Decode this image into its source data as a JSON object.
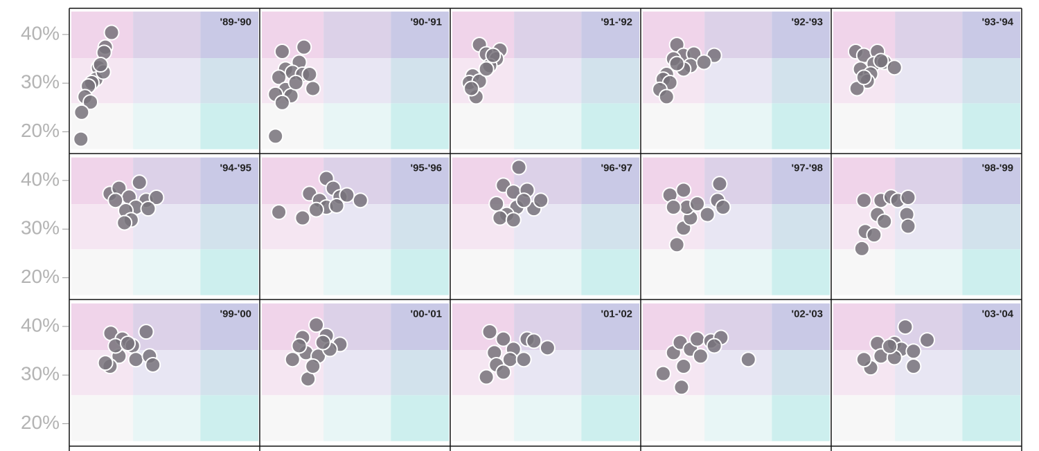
{
  "chart_data": [
    {
      "type": "scatter",
      "title": "'89-'90",
      "xlim": [
        0,
        100
      ],
      "ylim": [
        16,
        45
      ],
      "yticks": [
        {
          "value": 20,
          "label": "20%"
        },
        {
          "value": 30,
          "label": "30%"
        },
        {
          "value": 40,
          "label": "40%"
        }
      ],
      "x": [
        21.5,
        18.2,
        17.5,
        14.5,
        13.1,
        10.9,
        9.1,
        7.3,
        10.2,
        5.5,
        5.1,
        17.1,
        15.6
      ],
      "values": [
        40.4,
        37.4,
        36.3,
        33.2,
        30.8,
        30.1,
        29.4,
        27.2,
        26.1,
        24.0,
        18.5,
        32.3,
        33.8
      ]
    },
    {
      "type": "scatter",
      "title": "'90-'91",
      "xlim": [
        0,
        100
      ],
      "ylim": [
        16,
        45
      ],
      "x": [
        10.9,
        22.5,
        20,
        12.7,
        16.4,
        21.8,
        25.5,
        9.1,
        12.7,
        7.3,
        15.6,
        10.9,
        27.3,
        7.3,
        18.2
      ],
      "values": [
        36.5,
        37.4,
        34.3,
        32.9,
        32.2,
        31.8,
        31.8,
        31.2,
        28.7,
        27.7,
        27.4,
        26.0,
        28.9,
        19.1,
        30.1
      ]
    },
    {
      "type": "scatter",
      "title": "'91-'92",
      "xlim": [
        0,
        100
      ],
      "ylim": [
        16,
        45
      ],
      "x": [
        14.5,
        18.2,
        25.5,
        23.6,
        20,
        10.9,
        9.1,
        14.5,
        12.7,
        18.2,
        21.8,
        10.2
      ],
      "values": [
        37.9,
        36.0,
        36.8,
        35.0,
        33.6,
        31.5,
        30.1,
        30.4,
        27.2,
        32.9,
        35.7,
        28.9
      ]
    },
    {
      "type": "scatter",
      "title": "'92-'93",
      "xlim": [
        0,
        100
      ],
      "ylim": [
        16,
        45
      ],
      "x": [
        18.2,
        21.8,
        16.4,
        27.3,
        25.5,
        21.8,
        12.7,
        10.9,
        14.5,
        9.1,
        12.7,
        38.2,
        32.7,
        18.2
      ],
      "values": [
        37.9,
        35.7,
        35.0,
        36.0,
        33.6,
        32.9,
        31.8,
        30.8,
        30.1,
        28.7,
        27.2,
        35.7,
        34.3,
        34.0
      ]
    },
    {
      "type": "scatter",
      "title": "'93-'94",
      "xlim": [
        0,
        100
      ],
      "ylim": [
        16,
        45
      ],
      "x": [
        12,
        16.4,
        23.6,
        21.8,
        27.3,
        14.5,
        20,
        18.2,
        12.7,
        32.7,
        16.4,
        25.5
      ],
      "values": [
        36.5,
        35.7,
        36.5,
        34.0,
        34.3,
        32.9,
        31.9,
        30.4,
        28.9,
        33.2,
        31.2,
        34.6
      ]
    },
    {
      "type": "scatter",
      "title": "'94-'95",
      "xlim": [
        0,
        100
      ],
      "ylim": [
        16,
        45
      ],
      "yticks": [
        {
          "value": 20,
          "label": "20%"
        },
        {
          "value": 30,
          "label": "30%"
        },
        {
          "value": 40,
          "label": "40%"
        }
      ],
      "x": [
        20.7,
        25.5,
        30.9,
        36.4,
        40,
        45.5,
        34.5,
        29.1,
        32,
        41.1,
        23.6,
        28.4
      ],
      "values": [
        37.3,
        38.4,
        36.6,
        39.6,
        35.9,
        36.5,
        34.5,
        33.8,
        31.9,
        34.2,
        35.9,
        31.3
      ]
    },
    {
      "type": "scatter",
      "title": "'95-'96",
      "xlim": [
        0,
        100
      ],
      "ylim": [
        16,
        45
      ],
      "x": [
        25.5,
        34.5,
        30.9,
        38.2,
        41.8,
        34.5,
        29.1,
        21.8,
        9.1,
        52.7,
        45.5,
        40
      ],
      "values": [
        37.3,
        40.4,
        35.9,
        38.4,
        36.6,
        34.5,
        34.0,
        32.3,
        33.5,
        35.9,
        37,
        34.8
      ]
    },
    {
      "type": "scatter",
      "title": "'96-'97",
      "xlim": [
        0,
        100
      ],
      "ylim": [
        16,
        45
      ],
      "x": [
        35.6,
        27.3,
        32.7,
        40,
        23.6,
        34.5,
        29.1,
        25.5,
        32.7,
        43.6,
        47.3,
        38.2
      ],
      "values": [
        42.7,
        39.0,
        37.6,
        38.0,
        35.2,
        34.5,
        33.0,
        32.3,
        31.9,
        34.2,
        35.9,
        35.9
      ]
    },
    {
      "type": "scatter",
      "title": "'97-'98",
      "xlim": [
        0,
        100
      ],
      "ylim": [
        16,
        45
      ],
      "x": [
        18.2,
        21.8,
        25.5,
        23.6,
        29.1,
        40,
        41.1,
        14.5,
        21.8,
        34.5,
        42.9,
        16.4
      ],
      "values": [
        26.8,
        30.2,
        32.3,
        34.5,
        35.2,
        35.9,
        39.3,
        37.0,
        38.0,
        33.0,
        34.5,
        34.5
      ]
    },
    {
      "type": "scatter",
      "title": "'98-'99",
      "xlim": [
        0,
        100
      ],
      "ylim": [
        16,
        45
      ],
      "x": [
        15.3,
        17.1,
        21.8,
        23.6,
        25.5,
        30.9,
        34.5,
        40,
        39.3,
        16.4,
        27.3,
        40
      ],
      "values": [
        26,
        29.5,
        28.8,
        33,
        35.9,
        36.6,
        35.9,
        36.5,
        33,
        35.9,
        31.6,
        30.6
      ]
    },
    {
      "type": "scatter",
      "title": "'99-'00",
      "xlim": [
        0,
        100
      ],
      "ylim": [
        16,
        45
      ],
      "yticks": [
        {
          "value": 20,
          "label": "20%"
        },
        {
          "value": 30,
          "label": "30%"
        },
        {
          "value": 40,
          "label": "40%"
        }
      ],
      "x": [
        21.1,
        27.3,
        32.7,
        40,
        34.5,
        25.5,
        20.7,
        18.2,
        41.8,
        43.6,
        23.6,
        30.2
      ],
      "values": [
        38.6,
        37.4,
        36.0,
        38.9,
        33.2,
        33.9,
        31.8,
        32.5,
        33.9,
        32.1,
        36.0,
        36.5
      ]
    },
    {
      "type": "scatter",
      "title": "'00-'01",
      "xlim": [
        0,
        100
      ],
      "ylim": [
        16,
        45
      ],
      "x": [
        29.1,
        21.8,
        34.5,
        41.8,
        16.4,
        23.6,
        30.2,
        24.7,
        36.4,
        32.7,
        27.3,
        20
      ],
      "values": [
        40.3,
        37.7,
        38.1,
        36.3,
        33.2,
        34.6,
        33.9,
        29.2,
        35.3,
        36.7,
        31.8,
        36.0
      ]
    },
    {
      "type": "scatter",
      "title": "'01-'02",
      "xlim": [
        0,
        100
      ],
      "ylim": [
        16,
        45
      ],
      "x": [
        20,
        27.3,
        32.7,
        40,
        50.9,
        43.6,
        22.5,
        23.6,
        18.2,
        30.9,
        27.3,
        38.2
      ],
      "values": [
        38.9,
        37.4,
        35.3,
        37.4,
        35.6,
        37.0,
        34.6,
        32.1,
        29.6,
        33.2,
        30.6,
        33.2
      ]
    },
    {
      "type": "scatter",
      "title": "'02-'03",
      "xlim": [
        0,
        100
      ],
      "ylim": [
        16,
        45
      ],
      "x": [
        20.7,
        21.8,
        16.4,
        20,
        25.5,
        29.1,
        36.4,
        41.8,
        38.2,
        56.4,
        10.9,
        30.9
      ],
      "values": [
        27.5,
        31.8,
        34.6,
        36.7,
        35.3,
        37.4,
        37.0,
        37.7,
        36.0,
        33.2,
        30.3,
        33.9
      ]
    },
    {
      "type": "scatter",
      "title": "'03-'04",
      "xlim": [
        0,
        100
      ],
      "ylim": [
        16,
        45
      ],
      "x": [
        38.5,
        50.2,
        23.6,
        32.7,
        36.4,
        42.9,
        25.5,
        20,
        32.7,
        42.9,
        16.4,
        30.2
      ],
      "values": [
        39.9,
        37.2,
        36.5,
        36.5,
        35.3,
        34.9,
        33.9,
        31.5,
        33.6,
        31.8,
        33.2,
        35.9
      ]
    }
  ]
}
